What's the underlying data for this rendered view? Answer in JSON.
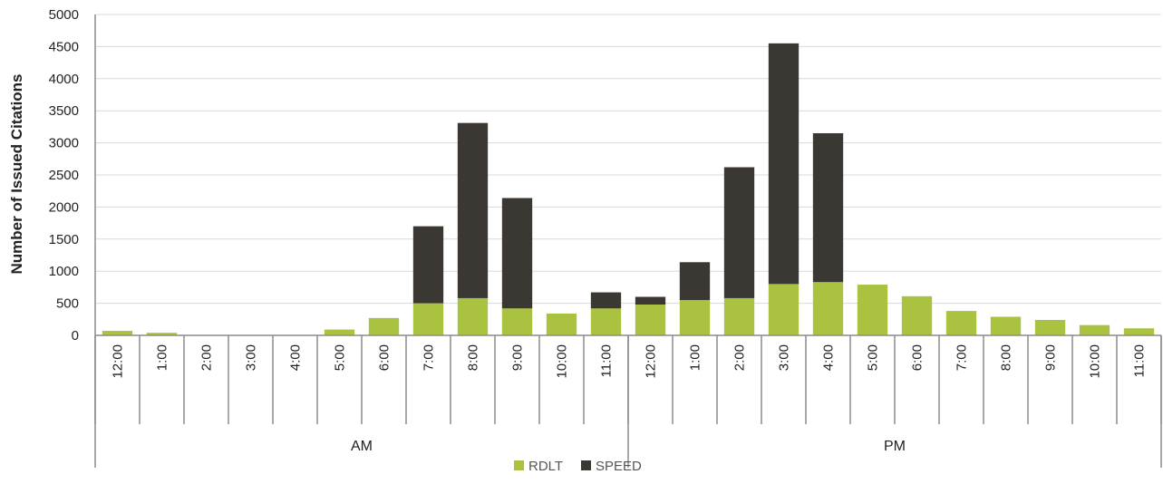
{
  "chart_data": {
    "type": "bar",
    "stacked": true,
    "ylabel": "Number of Issued Citations",
    "ylim": [
      0,
      5000
    ],
    "yticks": [
      0,
      500,
      1000,
      1500,
      2000,
      2500,
      3000,
      3500,
      4000,
      4500,
      5000
    ],
    "grid": true,
    "legend_position": "bottom",
    "categories": [
      "12:00",
      "1:00",
      "2:00",
      "3:00",
      "4:00",
      "5:00",
      "6:00",
      "7:00",
      "8:00",
      "9:00",
      "10:00",
      "11:00",
      "12:00",
      "1:00",
      "2:00",
      "3:00",
      "4:00",
      "5:00",
      "6:00",
      "7:00",
      "8:00",
      "9:00",
      "10:00",
      "11:00"
    ],
    "groups": [
      {
        "label": "AM",
        "count": 12
      },
      {
        "label": "PM",
        "count": 12
      }
    ],
    "series": [
      {
        "name": "RDLT",
        "color": "#a9c23f",
        "values": [
          70,
          40,
          0,
          0,
          0,
          90,
          270,
          500,
          580,
          420,
          340,
          420,
          480,
          550,
          580,
          800,
          830,
          790,
          610,
          380,
          290,
          240,
          160,
          110
        ]
      },
      {
        "name": "SPEED",
        "color": "#3b3834",
        "values": [
          0,
          0,
          0,
          0,
          0,
          0,
          0,
          1200,
          2730,
          1720,
          0,
          250,
          120,
          590,
          2040,
          3750,
          2320,
          0,
          0,
          0,
          0,
          0,
          0,
          0
        ]
      }
    ]
  }
}
